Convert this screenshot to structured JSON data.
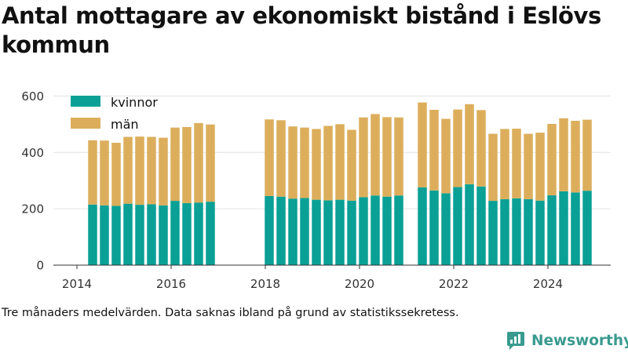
{
  "title": "Antal mottagare av ekonomiskt bistånd i Eslövs kommun",
  "caption": "Tre månaders medelvärden. Data saknas ibland på grund av statistikssekretess.",
  "brand": {
    "name": "Newsworthy",
    "logo_icon": "newsworthy-logo-icon"
  },
  "colors": {
    "kvinnor": "#0aa096",
    "man": "#dcae5c",
    "grid": "#e3e3e3",
    "axis": "#333333"
  },
  "chart_data": {
    "type": "bar",
    "stacked": true,
    "x_unit": "quarter",
    "x_ticks": [
      2014,
      2016,
      2018,
      2020,
      2022,
      2024
    ],
    "xlim": [
      "2013-07-01",
      "2025-05-01"
    ],
    "ylim": [
      0,
      640
    ],
    "y_ticks": [
      0,
      200,
      400,
      600
    ],
    "grid": true,
    "legend_position": "top-left",
    "categories": [
      "2014-05",
      "2014-08",
      "2014-11",
      "2015-02",
      "2015-05",
      "2015-08",
      "2015-11",
      "2016-02",
      "2016-05",
      "2016-08",
      "2016-11",
      "2018-02",
      "2018-05",
      "2018-08",
      "2018-11",
      "2019-02",
      "2019-05",
      "2019-08",
      "2019-11",
      "2020-02",
      "2020-05",
      "2020-08",
      "2020-11",
      "2021-05",
      "2021-08",
      "2021-11",
      "2022-02",
      "2022-05",
      "2022-08",
      "2022-11",
      "2023-02",
      "2023-05",
      "2023-08",
      "2023-11",
      "2024-02",
      "2024-05",
      "2024-08",
      "2024-11"
    ],
    "series": [
      {
        "name": "kvinnor",
        "values": [
          215,
          212,
          210,
          218,
          214,
          216,
          212,
          228,
          220,
          222,
          225,
          245,
          243,
          236,
          238,
          232,
          230,
          232,
          229,
          241,
          247,
          243,
          247,
          276,
          265,
          255,
          277,
          287,
          279,
          228,
          234,
          237,
          234,
          229,
          248,
          262,
          258,
          264
        ]
      },
      {
        "name": "män",
        "values": [
          228,
          230,
          224,
          237,
          242,
          239,
          240,
          260,
          270,
          282,
          274,
          272,
          271,
          256,
          250,
          251,
          264,
          268,
          251,
          283,
          289,
          282,
          277,
          301,
          286,
          264,
          275,
          284,
          271,
          238,
          249,
          247,
          232,
          241,
          253,
          259,
          254,
          252
        ]
      }
    ]
  }
}
